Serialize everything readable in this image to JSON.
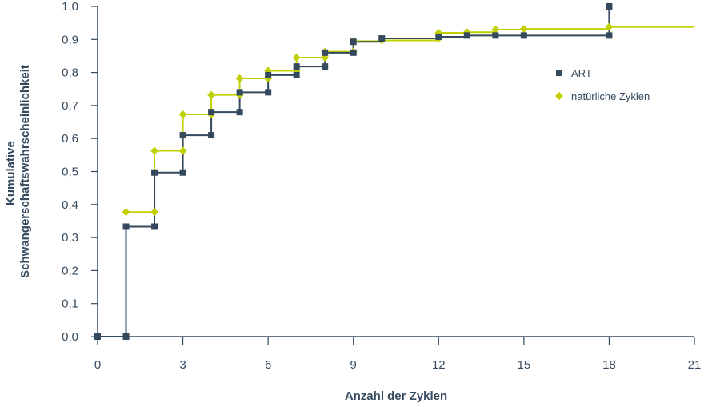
{
  "chart_data": {
    "type": "line",
    "step": true,
    "title": "",
    "xlabel": "Anzahl der Zyklen",
    "ylabel_lines": [
      "Kumulative",
      "Schwangerschaftswahrscheinlichkeit"
    ],
    "xlim": [
      0,
      21
    ],
    "ylim": [
      0,
      1
    ],
    "x_ticks": [
      0,
      3,
      6,
      9,
      12,
      15,
      18,
      21
    ],
    "x_tick_labels": [
      "0",
      "3",
      "6",
      "9",
      "12",
      "15",
      "18",
      "21"
    ],
    "y_ticks": [
      0,
      0.1,
      0.2,
      0.3,
      0.4,
      0.5,
      0.6,
      0.7,
      0.8,
      0.9,
      1.0
    ],
    "y_tick_labels": [
      "0,0",
      "0,1",
      "0,2",
      "0,3",
      "0,4",
      "0,5",
      "0,6",
      "0,7",
      "0,8",
      "0,9",
      "1,0"
    ],
    "grid": false,
    "legend_position": "right",
    "series": [
      {
        "name": "ART",
        "color": "#34495e",
        "marker": "square",
        "step_extend_to": 18,
        "points": [
          [
            0,
            0.0
          ],
          [
            1,
            0.0
          ],
          [
            1,
            0.333
          ],
          [
            2,
            0.333
          ],
          [
            2,
            0.497
          ],
          [
            3,
            0.497
          ],
          [
            3,
            0.61
          ],
          [
            4,
            0.61
          ],
          [
            4,
            0.68
          ],
          [
            5,
            0.68
          ],
          [
            5,
            0.74
          ],
          [
            6,
            0.74
          ],
          [
            6,
            0.792
          ],
          [
            7,
            0.792
          ],
          [
            7,
            0.818
          ],
          [
            8,
            0.818
          ],
          [
            8,
            0.86
          ],
          [
            9,
            0.86
          ],
          [
            9,
            0.893
          ],
          [
            10,
            0.903
          ],
          [
            12,
            0.908
          ],
          [
            13,
            0.912
          ],
          [
            14,
            0.912
          ],
          [
            15,
            0.912
          ],
          [
            18,
            0.912
          ],
          [
            18,
            1.0
          ]
        ]
      },
      {
        "name": "natürliche Zyklen",
        "color": "#c0d000",
        "marker": "diamond",
        "step_extend_to": 21,
        "points": [
          [
            1,
            0.377
          ],
          [
            2,
            0.377
          ],
          [
            2,
            0.563
          ],
          [
            3,
            0.563
          ],
          [
            3,
            0.673
          ],
          [
            4,
            0.673
          ],
          [
            4,
            0.732
          ],
          [
            5,
            0.732
          ],
          [
            5,
            0.782
          ],
          [
            6,
            0.782
          ],
          [
            6,
            0.805
          ],
          [
            7,
            0.805
          ],
          [
            7,
            0.845
          ],
          [
            8,
            0.845
          ],
          [
            8,
            0.863
          ],
          [
            9,
            0.863
          ],
          [
            9,
            0.895
          ],
          [
            10,
            0.897
          ],
          [
            12,
            0.903
          ],
          [
            12,
            0.92
          ],
          [
            13,
            0.922
          ],
          [
            14,
            0.93
          ],
          [
            15,
            0.932
          ],
          [
            18,
            0.938
          ]
        ]
      }
    ]
  }
}
